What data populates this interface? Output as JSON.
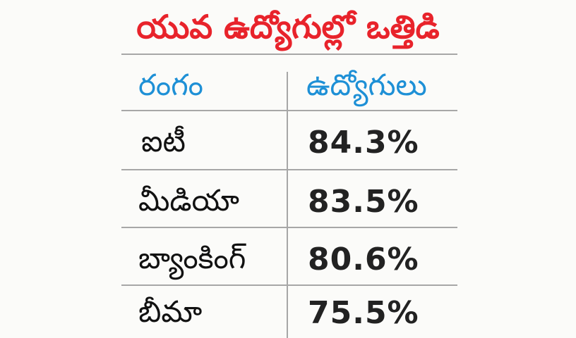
{
  "title": "యువ ఉద్యోగుల్లో ఒత్తిడి",
  "table": {
    "headers": {
      "sector": "రంగం",
      "employees": "ఉద్యోగులు"
    },
    "rows": [
      {
        "sector": "ఐటీ",
        "value": "84.3%"
      },
      {
        "sector": "మీడియా",
        "value": "83.5%"
      },
      {
        "sector": "బ్యాంకింగ్",
        "value": "80.6%"
      },
      {
        "sector": "బీమా",
        "value": "75.5%"
      }
    ]
  },
  "colors": {
    "title": "#e8232b",
    "header": "#1e90d6",
    "text": "#111111",
    "rule": "#a7a7a7",
    "background": "#fbfbf9"
  }
}
